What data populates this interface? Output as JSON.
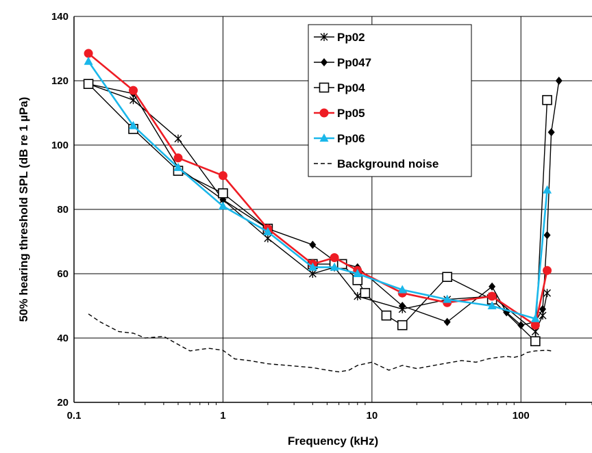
{
  "chart_data": {
    "type": "line",
    "title": "",
    "xlabel": "Frequency (kHz)",
    "ylabel": "50% hearing  threshold SPL (dB re 1 µPa)",
    "x_scale": "log",
    "xlim": [
      0.1,
      300
    ],
    "ylim": [
      20,
      140
    ],
    "x_ticks": [
      0.1,
      1,
      10,
      100
    ],
    "x_tick_labels": [
      "0.1",
      "1",
      "10",
      "100"
    ],
    "y_ticks": [
      20,
      40,
      60,
      80,
      100,
      120,
      140
    ],
    "y_tick_labels": [
      "20",
      "40",
      "60",
      "80",
      "100",
      "120",
      "140"
    ],
    "grid": true,
    "legend_position": "top-center",
    "series": [
      {
        "name": "Pp02",
        "color": "#000000",
        "marker": "star",
        "points": [
          [
            0.125,
            119
          ],
          [
            0.25,
            114
          ],
          [
            0.5,
            102
          ],
          [
            1,
            83
          ],
          [
            2,
            71
          ],
          [
            4,
            60
          ],
          [
            5.6,
            62
          ],
          [
            8,
            53
          ],
          [
            16,
            49
          ],
          [
            32,
            52
          ],
          [
            64,
            53
          ],
          [
            125,
            42
          ],
          [
            140,
            47
          ],
          [
            150,
            54
          ]
        ]
      },
      {
        "name": "Pp047",
        "color": "#000000",
        "marker": "diamond",
        "points": [
          [
            0.125,
            119
          ],
          [
            0.25,
            116
          ],
          [
            0.5,
            93
          ],
          [
            1,
            83
          ],
          [
            2,
            74
          ],
          [
            4,
            69
          ],
          [
            5.6,
            64
          ],
          [
            8,
            62
          ],
          [
            16,
            50
          ],
          [
            32,
            45
          ],
          [
            64,
            56
          ],
          [
            80,
            48
          ],
          [
            100,
            44
          ],
          [
            125,
            45
          ],
          [
            140,
            49
          ],
          [
            150,
            72
          ],
          [
            160,
            104
          ],
          [
            180,
            120
          ]
        ]
      },
      {
        "name": "Pp04",
        "color": "#000000",
        "marker": "square-open",
        "points": [
          [
            0.125,
            119
          ],
          [
            0.25,
            105
          ],
          [
            0.5,
            92
          ],
          [
            1,
            85
          ],
          [
            2,
            74
          ],
          [
            4,
            63
          ],
          [
            5.6,
            63
          ],
          [
            6.3,
            63
          ],
          [
            8,
            58
          ],
          [
            9,
            54
          ],
          [
            12.5,
            47
          ],
          [
            16,
            44
          ],
          [
            32,
            59
          ],
          [
            64,
            52
          ],
          [
            125,
            39
          ],
          [
            150,
            114
          ]
        ]
      },
      {
        "name": "Pp05",
        "color": "#ee1c24",
        "marker": "circle",
        "points": [
          [
            0.125,
            128.5
          ],
          [
            0.25,
            117
          ],
          [
            0.5,
            96
          ],
          [
            1,
            90.5
          ],
          [
            2,
            74
          ],
          [
            4,
            63
          ],
          [
            5.6,
            65
          ],
          [
            8,
            61
          ],
          [
            16,
            54
          ],
          [
            32,
            51
          ],
          [
            64,
            53
          ],
          [
            125,
            44
          ],
          [
            150,
            61
          ]
        ]
      },
      {
        "name": "Pp06",
        "color": "#1ab7ea",
        "marker": "triangle",
        "points": [
          [
            0.125,
            126
          ],
          [
            0.25,
            106
          ],
          [
            0.5,
            93
          ],
          [
            1,
            81
          ],
          [
            2,
            73
          ],
          [
            4,
            62
          ],
          [
            5.6,
            62
          ],
          [
            8,
            60
          ],
          [
            16,
            55
          ],
          [
            32,
            52
          ],
          [
            64,
            50
          ],
          [
            125,
            46
          ],
          [
            150,
            86
          ]
        ]
      },
      {
        "name": "Background noise",
        "color": "#000000",
        "marker": "none",
        "dash": true,
        "points": [
          [
            0.125,
            47.5
          ],
          [
            0.15,
            45
          ],
          [
            0.2,
            42
          ],
          [
            0.25,
            41.5
          ],
          [
            0.3,
            40
          ],
          [
            0.4,
            40.5
          ],
          [
            0.5,
            38
          ],
          [
            0.6,
            36
          ],
          [
            0.8,
            36.8
          ],
          [
            1,
            36.2
          ],
          [
            1.2,
            33.5
          ],
          [
            1.5,
            33
          ],
          [
            2,
            32
          ],
          [
            3,
            31.3
          ],
          [
            4,
            30.8
          ],
          [
            5,
            30
          ],
          [
            6,
            29.5
          ],
          [
            7,
            30
          ],
          [
            8,
            31.5
          ],
          [
            10,
            32.5
          ],
          [
            13,
            30
          ],
          [
            16,
            31.5
          ],
          [
            20,
            30.5
          ],
          [
            30,
            32
          ],
          [
            40,
            33
          ],
          [
            50,
            32.5
          ],
          [
            60,
            33.5
          ],
          [
            70,
            34
          ],
          [
            80,
            34.3
          ],
          [
            90,
            34
          ],
          [
            100,
            34.5
          ],
          [
            110,
            35.5
          ],
          [
            125,
            36
          ],
          [
            150,
            36.2
          ],
          [
            160,
            36
          ]
        ]
      }
    ]
  }
}
